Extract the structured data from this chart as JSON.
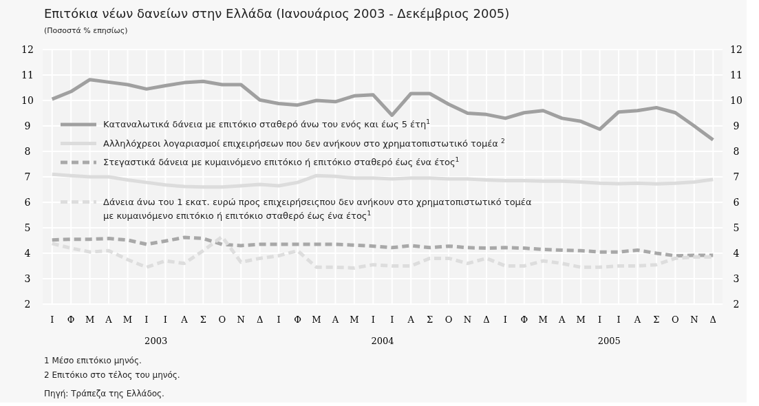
{
  "chart_data": {
    "type": "line",
    "title": "Επιτόκια νέων δανείων στην Ελλάδα (Ιανουάριος 2003 - Δεκέμβριος 2005)",
    "subtitle": "(Ποσοστά % επησίως)",
    "categories": [
      "Ι",
      "Φ",
      "Μ",
      "Α",
      "Μ",
      "Ι",
      "Ι",
      "Α",
      "Σ",
      "Ο",
      "Ν",
      "Δ",
      "Ι",
      "Φ",
      "Μ",
      "Α",
      "Μ",
      "Ι",
      "Ι",
      "Α",
      "Σ",
      "Ο",
      "Ν",
      "Δ",
      "Ι",
      "Φ",
      "Μ",
      "Α",
      "Μ",
      "Ι",
      "Ι",
      "Α",
      "Σ",
      "Ο",
      "Ν",
      "Δ"
    ],
    "series": [
      {
        "name": "Καταναλωτικά δάνεια με επιτόκιο σταθερό άνω του ενός και έως 5 έτη$^{1}$",
        "color": "#a0a0a0",
        "line_style": "solid",
        "values": [
          10.05,
          10.35,
          10.82,
          10.72,
          10.62,
          10.45,
          10.58,
          10.7,
          10.75,
          10.62,
          10.62,
          10.02,
          9.88,
          9.82,
          10.0,
          9.95,
          10.18,
          10.22,
          9.42,
          10.27,
          10.27,
          9.85,
          9.5,
          9.45,
          9.3,
          9.52,
          9.6,
          9.3,
          9.18,
          8.87,
          9.55,
          9.6,
          9.72,
          9.52,
          9.0,
          8.45
        ]
      },
      {
        "name": "Αλληλόχρεοι λογαριασμοί επιχειρήσεων που δεν ανήκουν στο χρηματοπιστωτικό τομέα $^{2}$",
        "color": "#dcdcdc",
        "line_style": "solid",
        "values": [
          7.1,
          7.05,
          7.0,
          7.0,
          6.88,
          6.78,
          6.68,
          6.62,
          6.6,
          6.6,
          6.65,
          6.7,
          6.65,
          6.78,
          7.05,
          7.02,
          6.95,
          6.95,
          6.92,
          6.95,
          6.95,
          6.92,
          6.92,
          6.88,
          6.85,
          6.85,
          6.83,
          6.83,
          6.8,
          6.75,
          6.73,
          6.75,
          6.72,
          6.75,
          6.8,
          6.9
        ]
      },
      {
        "name": "Στεγαστικά δάνεια με κυμαινόμενο επιτόκιο ή επιτόκιο σταθερό έως ένα έτος$^{1}$",
        "color": "#a8a8a8",
        "line_style": "dashed",
        "values": [
          4.52,
          4.55,
          4.55,
          4.58,
          4.52,
          4.35,
          4.48,
          4.62,
          4.58,
          4.35,
          4.3,
          4.35,
          4.35,
          4.35,
          4.35,
          4.35,
          4.32,
          4.28,
          4.22,
          4.3,
          4.22,
          4.28,
          4.22,
          4.2,
          4.22,
          4.2,
          4.15,
          4.12,
          4.1,
          4.05,
          4.05,
          4.12,
          4.0,
          3.9,
          3.92,
          3.92
        ]
      },
      {
        "name": "Δάνεια άνω του 1 εκατ. ευρώ προς επιχειρήσειςπου δεν ανήκουν στο χρηματοπιστωτικό τομέα με κυμαινόμενο επιτόκιο ή επιτόκιο σταθερό έως ένα έτος$^{1}$",
        "color": "#dddddd",
        "line_style": "dashed",
        "values": [
          4.38,
          4.2,
          4.05,
          4.1,
          3.75,
          3.45,
          3.7,
          3.6,
          4.1,
          4.65,
          3.65,
          3.8,
          3.9,
          4.1,
          3.45,
          3.45,
          3.42,
          3.55,
          3.5,
          3.5,
          3.8,
          3.8,
          3.6,
          3.8,
          3.5,
          3.5,
          3.7,
          3.6,
          3.45,
          3.45,
          3.5,
          3.5,
          3.55,
          3.8,
          3.85,
          3.85
        ]
      }
    ],
    "ylim": [
      2,
      12
    ],
    "yticks": [
      2,
      3,
      4,
      5,
      6,
      7,
      8,
      9,
      10,
      11,
      12
    ],
    "y2lim": [
      2,
      12
    ],
    "y2ticks": [
      2,
      3,
      4,
      5,
      6,
      7,
      8,
      9,
      10,
      11,
      12
    ],
    "grid": true,
    "legend": "left",
    "annotations": [
      "2003",
      "2004",
      "2005",
      "1  Μέσο επιτόκιο μηνός.",
      "2  Επιτόκιο στο τέλος του μηνός.",
      "Πηγή: Τράπεζα της Ελλάδος."
    ]
  }
}
